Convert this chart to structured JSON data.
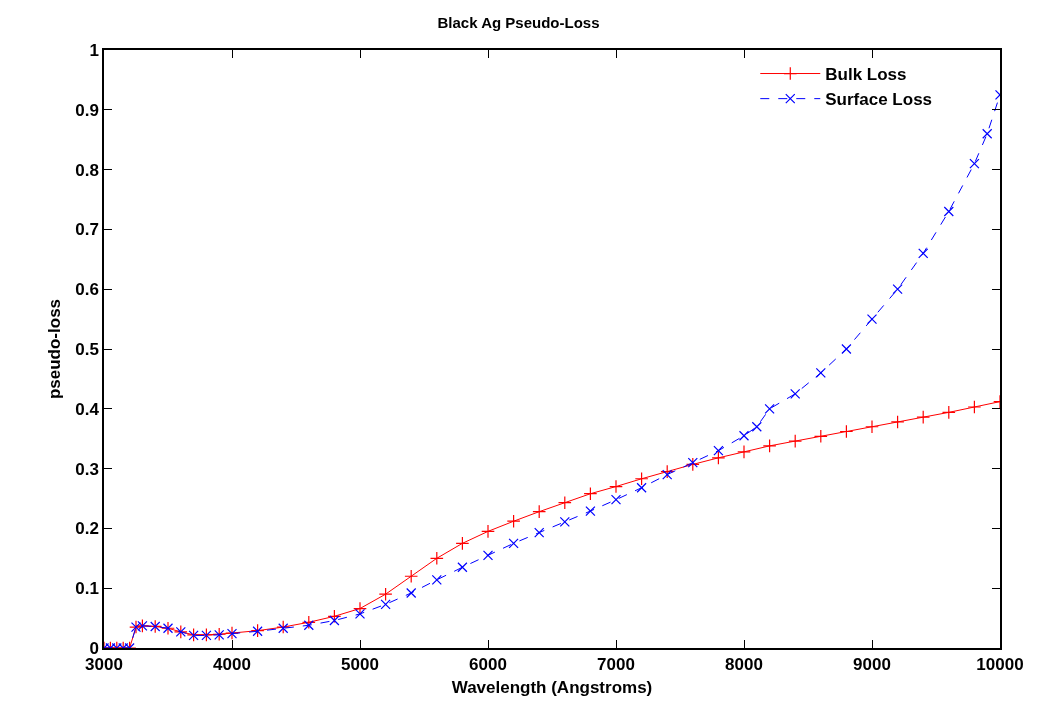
{
  "chart_data": {
    "type": "line",
    "title": "Black Ag Pseudo-Loss",
    "xlabel": "Wavelength (Angstroms)",
    "ylabel": "pseudo-loss",
    "xlim": [
      3000,
      10000
    ],
    "xticks": [
      3000,
      4000,
      5000,
      6000,
      7000,
      8000,
      9000,
      10000
    ],
    "ylim": [
      0,
      1
    ],
    "yticks": [
      0,
      0.1,
      0.2,
      0.3,
      0.4,
      0.5,
      0.6,
      0.7,
      0.8,
      0.9,
      1
    ],
    "legend": "top right",
    "series": [
      {
        "name": "Bulk Loss",
        "color": "#ff0000",
        "marker": "cross",
        "line_style": "solid",
        "x": [
          3000,
          3050,
          3100,
          3150,
          3200,
          3250,
          3300,
          3400,
          3500,
          3600,
          3700,
          3800,
          3900,
          4000,
          4200,
          4400,
          4600,
          4800,
          5000,
          5200,
          5400,
          5600,
          5800,
          6000,
          6200,
          6400,
          6600,
          6800,
          7000,
          7200,
          7400,
          7600,
          7800,
          8000,
          8200,
          8400,
          8600,
          8800,
          9000,
          9200,
          9400,
          9600,
          9800,
          10000
        ],
        "values": [
          0,
          0,
          0,
          0,
          0,
          0.035,
          0.037,
          0.036,
          0.033,
          0.027,
          0.022,
          0.022,
          0.023,
          0.025,
          0.029,
          0.035,
          0.043,
          0.053,
          0.066,
          0.09,
          0.12,
          0.15,
          0.175,
          0.195,
          0.212,
          0.228,
          0.243,
          0.258,
          0.27,
          0.283,
          0.295,
          0.307,
          0.318,
          0.328,
          0.338,
          0.346,
          0.354,
          0.362,
          0.37,
          0.378,
          0.386,
          0.394,
          0.403,
          0.412
        ]
      },
      {
        "name": "Surface Loss",
        "color": "#0000ff",
        "marker": "x",
        "line_style": "dashed",
        "x": [
          3000,
          3050,
          3100,
          3150,
          3200,
          3250,
          3300,
          3400,
          3500,
          3600,
          3700,
          3800,
          3900,
          4000,
          4200,
          4400,
          4600,
          4800,
          5000,
          5200,
          5400,
          5600,
          5800,
          6000,
          6200,
          6400,
          6600,
          6800,
          7000,
          7200,
          7400,
          7600,
          7800,
          8000,
          8100,
          8200,
          8400,
          8600,
          8800,
          9000,
          9200,
          9400,
          9600,
          9800,
          9900,
          10000
        ],
        "values": [
          0,
          0,
          0,
          0,
          0,
          0.035,
          0.037,
          0.036,
          0.033,
          0.027,
          0.021,
          0.021,
          0.022,
          0.024,
          0.028,
          0.033,
          0.038,
          0.046,
          0.057,
          0.073,
          0.092,
          0.114,
          0.135,
          0.155,
          0.175,
          0.193,
          0.211,
          0.229,
          0.248,
          0.268,
          0.29,
          0.31,
          0.33,
          0.355,
          0.37,
          0.4,
          0.425,
          0.46,
          0.5,
          0.55,
          0.6,
          0.66,
          0.73,
          0.81,
          0.86,
          0.925
        ]
      }
    ]
  }
}
